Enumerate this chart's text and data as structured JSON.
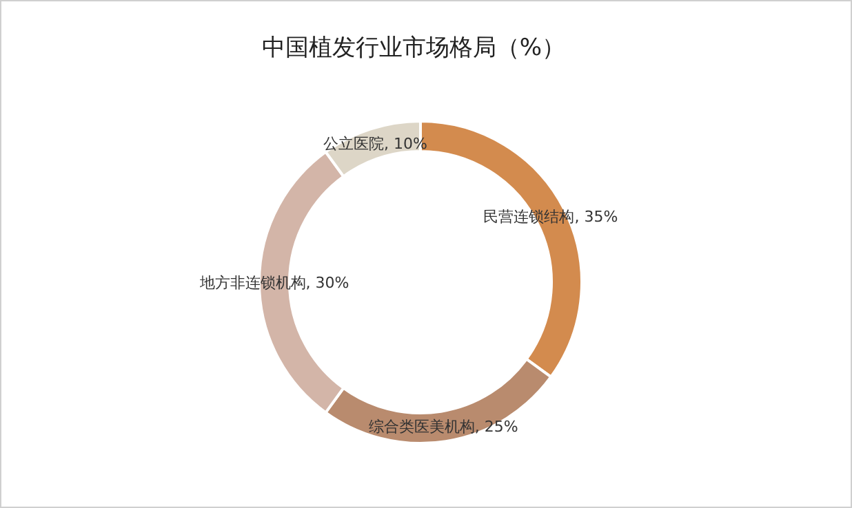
{
  "chart_data": {
    "type": "donut",
    "title": "中国植发行业市场格局（%）",
    "categories": [
      "民营连锁结构",
      "综合类医美机构",
      "地方非连锁机构",
      "公立医院"
    ],
    "values": [
      35,
      25,
      30,
      10
    ],
    "value_labels": [
      "35%",
      "25%",
      "30%",
      "10%"
    ],
    "colors": [
      "#d38b4e",
      "#b98b6e",
      "#d3b5a8",
      "#ddd6c7"
    ],
    "legend": false
  }
}
